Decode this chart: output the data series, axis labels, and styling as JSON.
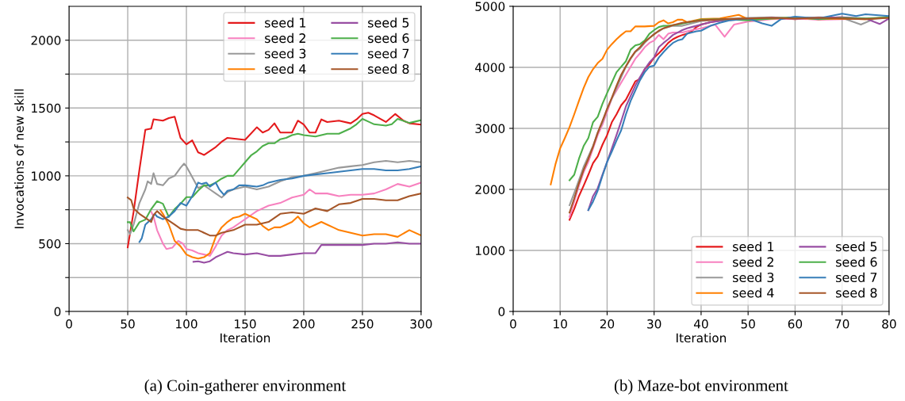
{
  "chart_data": [
    {
      "type": "line",
      "xlabel": "Iteration",
      "ylabel": "Invocations of new skill",
      "xlim": [
        0,
        300
      ],
      "xticks": [
        0,
        50,
        100,
        150,
        200,
        250,
        300
      ],
      "ylim": [
        0,
        2250
      ],
      "yticks": [
        0,
        {
          "value": 250,
          "label": null
        },
        500,
        {
          "value": 750,
          "label": null
        },
        1000,
        {
          "value": 1250,
          "label": null
        },
        1500,
        {
          "value": 1750,
          "label": null
        },
        2000
      ],
      "grid": true,
      "legend": "top right",
      "annotations": [
        "(a) Coin-gatherer environment"
      ],
      "series": [
        {
          "name": "seed 1",
          "color": "#e41a1c",
          "x": [
            50,
            55,
            60,
            65,
            70,
            72,
            80,
            85,
            90,
            95,
            100,
            105,
            110,
            115,
            120,
            125,
            130,
            135,
            150,
            160,
            165,
            170,
            175,
            180,
            190,
            195,
            200,
            205,
            210,
            215,
            220,
            230,
            240,
            245,
            250,
            255,
            260,
            270,
            278,
            285,
            290,
            300
          ],
          "values": [
            473,
            735,
            1047,
            1339,
            1349,
            1417,
            1407,
            1426,
            1436,
            1280,
            1232,
            1261,
            1173,
            1154,
            1183,
            1212,
            1251,
            1280,
            1265,
            1358,
            1319,
            1339,
            1387,
            1319,
            1319,
            1407,
            1378,
            1319,
            1319,
            1416,
            1397,
            1407,
            1387,
            1416,
            1456,
            1465,
            1446,
            1397,
            1456,
            1407,
            1387,
            1378
          ]
        },
        {
          "name": "seed 2",
          "color": "#f781bf",
          "x": [
            70,
            72,
            75,
            80,
            83,
            88,
            93,
            97,
            100,
            105,
            110,
            115,
            120,
            125,
            130,
            135,
            140,
            145,
            150,
            155,
            160,
            170,
            180,
            190,
            200,
            205,
            210,
            220,
            230,
            240,
            250,
            260,
            270,
            280,
            290,
            300
          ],
          "values": [
            735,
            700,
            600,
            500,
            460,
            470,
            520,
            500,
            460,
            450,
            430,
            420,
            410,
            480,
            560,
            600,
            620,
            650,
            680,
            710,
            740,
            780,
            800,
            840,
            860,
            900,
            870,
            870,
            850,
            860,
            860,
            870,
            900,
            940,
            920,
            950
          ]
        },
        {
          "name": "seed 3",
          "color": "#999999",
          "x": [
            50,
            52,
            55,
            60,
            65,
            67,
            70,
            72,
            75,
            80,
            85,
            90,
            95,
            98,
            100,
            105,
            110,
            115,
            120,
            125,
            130,
            135,
            140,
            150,
            160,
            170,
            180,
            190,
            200,
            210,
            220,
            230,
            240,
            250,
            260,
            270,
            280,
            290,
            300
          ],
          "values": [
            600,
            570,
            640,
            800,
            900,
            960,
            940,
            1020,
            940,
            930,
            980,
            1000,
            1060,
            1090,
            1070,
            990,
            910,
            930,
            900,
            870,
            840,
            880,
            900,
            920,
            900,
            920,
            960,
            990,
            1000,
            1020,
            1040,
            1060,
            1070,
            1080,
            1100,
            1110,
            1100,
            1110,
            1100
          ]
        },
        {
          "name": "seed 4",
          "color": "#ff7f00",
          "x": [
            78,
            80,
            85,
            90,
            95,
            100,
            105,
            110,
            115,
            120,
            125,
            130,
            135,
            140,
            145,
            150,
            155,
            160,
            165,
            170,
            175,
            180,
            185,
            190,
            195,
            200,
            205,
            210,
            215,
            220,
            225,
            230,
            240,
            250,
            260,
            270,
            280,
            290,
            300
          ],
          "values": [
            745,
            720,
            640,
            520,
            480,
            420,
            400,
            390,
            400,
            430,
            550,
            620,
            660,
            690,
            700,
            720,
            700,
            680,
            630,
            600,
            620,
            620,
            640,
            660,
            700,
            650,
            620,
            640,
            660,
            640,
            620,
            600,
            580,
            560,
            570,
            570,
            550,
            600,
            560
          ]
        },
        {
          "name": "seed 5",
          "color": "#984ea3",
          "x": [
            106,
            110,
            115,
            120,
            125,
            130,
            135,
            140,
            150,
            160,
            170,
            180,
            190,
            200,
            210,
            215,
            220,
            240,
            250,
            260,
            270,
            280,
            290,
            300
          ],
          "values": [
            366,
            370,
            360,
            370,
            400,
            420,
            440,
            430,
            420,
            430,
            410,
            410,
            420,
            430,
            430,
            490,
            490,
            490,
            490,
            500,
            500,
            510,
            500,
            500
          ]
        },
        {
          "name": "seed 6",
          "color": "#4daf4a",
          "x": [
            50,
            52,
            55,
            60,
            65,
            70,
            75,
            80,
            85,
            90,
            95,
            100,
            105,
            110,
            115,
            120,
            125,
            130,
            135,
            140,
            145,
            150,
            155,
            160,
            165,
            170,
            175,
            180,
            185,
            190,
            195,
            200,
            210,
            220,
            230,
            240,
            245,
            250,
            255,
            260,
            270,
            275,
            280,
            290,
            300
          ],
          "values": [
            658,
            658,
            590,
            658,
            677,
            755,
            813,
            794,
            697,
            755,
            794,
            843,
            843,
            891,
            930,
            930,
            950,
            979,
            1000,
            1000,
            1050,
            1100,
            1150,
            1180,
            1220,
            1240,
            1240,
            1270,
            1280,
            1300,
            1310,
            1300,
            1290,
            1310,
            1310,
            1350,
            1380,
            1420,
            1400,
            1380,
            1370,
            1380,
            1420,
            1390,
            1410
          ]
        },
        {
          "name": "seed 7",
          "color": "#377eb8",
          "x": [
            60,
            62,
            65,
            70,
            73,
            75,
            80,
            85,
            90,
            95,
            100,
            105,
            110,
            113,
            117,
            120,
            125,
            128,
            132,
            135,
            140,
            145,
            150,
            160,
            165,
            170,
            180,
            190,
            200,
            210,
            220,
            230,
            240,
            250,
            260,
            270,
            280,
            290,
            300
          ],
          "values": [
            512,
            540,
            640,
            680,
            720,
            700,
            680,
            700,
            740,
            800,
            780,
            850,
            950,
            940,
            950,
            920,
            950,
            900,
            860,
            890,
            900,
            930,
            930,
            920,
            930,
            950,
            970,
            980,
            1000,
            1010,
            1020,
            1030,
            1040,
            1050,
            1050,
            1040,
            1040,
            1050,
            1070
          ]
        },
        {
          "name": "seed 8",
          "color": "#a65628",
          "x": [
            50,
            53,
            55,
            60,
            65,
            70,
            72,
            75,
            80,
            85,
            90,
            95,
            100,
            110,
            115,
            120,
            125,
            130,
            140,
            150,
            160,
            170,
            180,
            190,
            200,
            210,
            220,
            230,
            240,
            250,
            260,
            270,
            280,
            290,
            300
          ],
          "values": [
            840,
            820,
            760,
            720,
            690,
            660,
            710,
            740,
            700,
            670,
            640,
            610,
            600,
            600,
            580,
            560,
            560,
            580,
            600,
            640,
            640,
            660,
            720,
            730,
            720,
            760,
            740,
            790,
            800,
            830,
            830,
            820,
            820,
            850,
            870
          ]
        }
      ]
    },
    {
      "type": "line",
      "xlabel": "Iteration",
      "xlim": [
        0,
        80
      ],
      "xticks": [
        0,
        10,
        20,
        30,
        40,
        50,
        60,
        70,
        80
      ],
      "ylim": [
        0,
        5000
      ],
      "yticks": [
        0,
        1000,
        2000,
        3000,
        4000,
        5000
      ],
      "grid": true,
      "legend": "bottom right",
      "annotations": [
        "(b) Maze-bot environment"
      ],
      "series": [
        {
          "name": "seed 1",
          "color": "#e41a1c",
          "x": [
            12,
            13,
            14,
            15,
            16,
            17,
            18,
            19,
            20,
            21,
            22,
            23,
            24,
            25,
            26,
            27,
            28,
            29,
            30,
            31,
            32,
            33,
            34,
            35,
            36,
            37,
            38,
            39,
            40,
            42,
            45,
            50,
            55,
            60,
            65,
            70
          ],
          "values": [
            1500,
            1680,
            1890,
            2060,
            2240,
            2430,
            2540,
            2730,
            2890,
            3100,
            3230,
            3380,
            3470,
            3620,
            3770,
            3810,
            3970,
            4050,
            4160,
            4230,
            4310,
            4400,
            4460,
            4500,
            4530,
            4550,
            4590,
            4660,
            4700,
            4740,
            4780,
            4800,
            4810,
            4790,
            4810,
            4820
          ]
        },
        {
          "name": "seed 2",
          "color": "#f781bf",
          "x": [
            12,
            13,
            14,
            15,
            16,
            17,
            18,
            19,
            20,
            21,
            22,
            23,
            24,
            25,
            26,
            27,
            28,
            29,
            30,
            31,
            32,
            33,
            34,
            36,
            38,
            40,
            43,
            45,
            47,
            50,
            55,
            60,
            65,
            70,
            75,
            80
          ],
          "values": [
            1550,
            1800,
            2060,
            2280,
            2450,
            2670,
            2890,
            3060,
            3270,
            3490,
            3620,
            3750,
            3880,
            4010,
            4140,
            4230,
            4330,
            4400,
            4440,
            4530,
            4460,
            4550,
            4570,
            4570,
            4610,
            4640,
            4700,
            4500,
            4700,
            4750,
            4790,
            4800,
            4780,
            4790,
            4800,
            4810
          ]
        },
        {
          "name": "seed 3",
          "color": "#999999",
          "x": [
            12,
            13,
            14,
            15,
            16,
            17,
            18,
            19,
            20,
            21,
            22,
            23,
            24,
            25,
            26,
            27,
            28,
            29,
            30,
            31,
            32,
            34,
            36,
            40,
            45,
            50,
            55,
            60,
            65,
            70,
            74,
            77,
            80
          ],
          "values": [
            1740,
            1940,
            2150,
            2370,
            2540,
            2710,
            2930,
            3100,
            3320,
            3490,
            3660,
            3840,
            4010,
            4140,
            4250,
            4310,
            4400,
            4480,
            4550,
            4590,
            4640,
            4680,
            4680,
            4760,
            4790,
            4810,
            4820,
            4800,
            4820,
            4810,
            4700,
            4800,
            4810
          ]
        },
        {
          "name": "seed 4",
          "color": "#ff7f00",
          "x": [
            8,
            9,
            10,
            11,
            12,
            13,
            14,
            15,
            16,
            17,
            18,
            19,
            20,
            21,
            22,
            23,
            24,
            25,
            26,
            28,
            30,
            31,
            32,
            33,
            34,
            35,
            36,
            37,
            40,
            44,
            48,
            50,
            55,
            60,
            65,
            70,
            75,
            80
          ],
          "values": [
            2080,
            2410,
            2670,
            2840,
            3020,
            3230,
            3450,
            3660,
            3840,
            3970,
            4070,
            4140,
            4290,
            4380,
            4460,
            4530,
            4590,
            4590,
            4670,
            4670,
            4680,
            4740,
            4770,
            4720,
            4740,
            4780,
            4780,
            4740,
            4790,
            4800,
            4860,
            4790,
            4800,
            4810,
            4790,
            4800,
            4790,
            4820
          ]
        },
        {
          "name": "seed 5",
          "color": "#984ea3",
          "x": [
            16,
            17,
            18,
            19,
            20,
            21,
            22,
            23,
            24,
            25,
            26,
            27,
            28,
            29,
            30,
            31,
            32,
            33,
            34,
            35,
            36,
            37,
            38,
            40,
            42,
            45,
            50,
            55,
            60,
            65,
            70,
            75,
            78,
            80
          ],
          "values": [
            1660,
            1890,
            2020,
            2240,
            2450,
            2670,
            2890,
            3120,
            3360,
            3530,
            3700,
            3840,
            3970,
            4080,
            4160,
            4330,
            4400,
            4460,
            4530,
            4570,
            4610,
            4640,
            4660,
            4700,
            4740,
            4770,
            4790,
            4810,
            4800,
            4810,
            4820,
            4800,
            4710,
            4800
          ]
        },
        {
          "name": "seed 6",
          "color": "#4daf4a",
          "x": [
            12,
            13,
            14,
            15,
            16,
            17,
            18,
            19,
            20,
            21,
            22,
            23,
            24,
            25,
            26,
            27,
            28,
            29,
            30,
            31,
            32,
            33,
            35,
            40,
            45,
            50,
            55,
            60,
            65,
            70,
            75,
            80
          ],
          "values": [
            2150,
            2240,
            2500,
            2710,
            2840,
            3100,
            3190,
            3400,
            3580,
            3750,
            3920,
            4010,
            4100,
            4290,
            4360,
            4380,
            4440,
            4550,
            4610,
            4660,
            4680,
            4680,
            4700,
            4780,
            4790,
            4770,
            4800,
            4820,
            4790,
            4810,
            4800,
            4820
          ]
        },
        {
          "name": "seed 7",
          "color": "#377eb8",
          "x": [
            16,
            17,
            18,
            19,
            20,
            21,
            22,
            23,
            24,
            25,
            26,
            27,
            28,
            29,
            30,
            31,
            32,
            33,
            34,
            35,
            36,
            37,
            38,
            39,
            40,
            42,
            44,
            46,
            50,
            53,
            55,
            57,
            60,
            65,
            70,
            73,
            75,
            80
          ],
          "values": [
            1660,
            1800,
            1980,
            2220,
            2450,
            2620,
            2800,
            2970,
            3230,
            3450,
            3620,
            3790,
            3920,
            4010,
            4030,
            4160,
            4250,
            4330,
            4400,
            4440,
            4460,
            4550,
            4570,
            4590,
            4600,
            4680,
            4730,
            4770,
            4800,
            4720,
            4680,
            4790,
            4830,
            4800,
            4880,
            4840,
            4870,
            4840
          ]
        },
        {
          "name": "seed 8",
          "color": "#a65628",
          "x": [
            12,
            13,
            14,
            15,
            16,
            17,
            18,
            19,
            20,
            21,
            22,
            23,
            24,
            25,
            26,
            27,
            28,
            29,
            30,
            31,
            32,
            34,
            36,
            40,
            45,
            50,
            55,
            60,
            65,
            70,
            75,
            80
          ],
          "values": [
            1620,
            1850,
            2100,
            2320,
            2500,
            2700,
            2930,
            3120,
            3320,
            3500,
            3700,
            3880,
            4020,
            4150,
            4260,
            4330,
            4420,
            4480,
            4540,
            4600,
            4640,
            4690,
            4730,
            4770,
            4790,
            4800,
            4810,
            4800,
            4810,
            4800,
            4790,
            4810
          ]
        }
      ]
    }
  ]
}
